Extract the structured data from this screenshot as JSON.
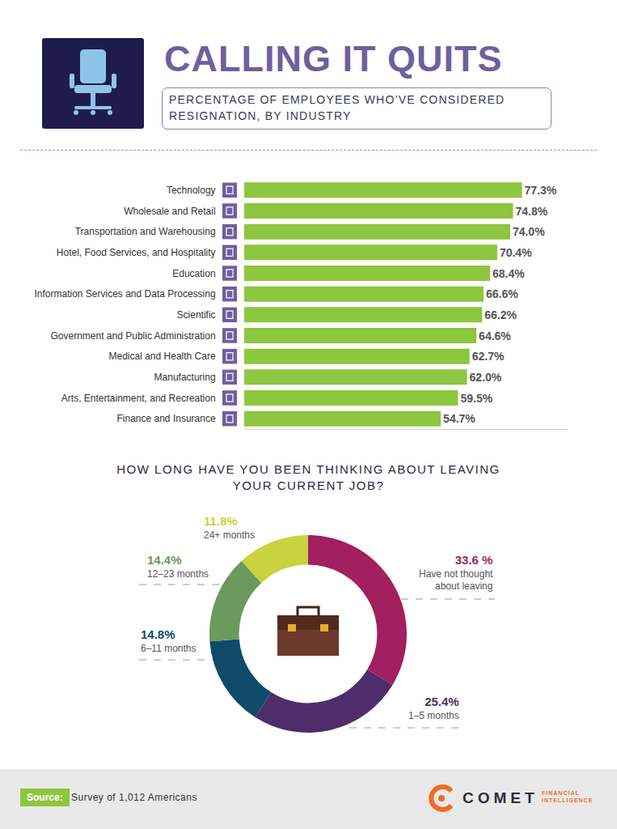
{
  "chart_data": [
    {
      "type": "bar",
      "title": "CALLING IT QUITS",
      "subtitle": "PERCENTAGE OF EMPLOYEES WHO’VE CONSIDERED RESIGNATION, BY INDUSTRY",
      "orientation": "horizontal",
      "categories": [
        "Technology",
        "Wholesale and Retail",
        "Transportation and Warehousing",
        "Hotel, Food Services, and Hospitality",
        "Education",
        "Information Services and Data Processing",
        "Scientific",
        "Government and Public Administration",
        "Medical and Health Care",
        "Manufacturing",
        "Arts, Entertainment, and Recreation",
        "Finance and Insurance"
      ],
      "values": [
        77.3,
        74.8,
        74.0,
        70.4,
        68.4,
        66.6,
        66.2,
        64.6,
        62.7,
        62.0,
        59.5,
        54.7
      ],
      "value_labels": [
        "77.3%",
        "74.8%",
        "74.0%",
        "70.4%",
        "68.4%",
        "66.6%",
        "66.2%",
        "64.6%",
        "62.7%",
        "62.0%",
        "59.5%",
        "54.7%"
      ],
      "color": "#8dc63f",
      "xlim": [
        0,
        90
      ],
      "grid": false,
      "tick_labels": "y",
      "data_labels": true
    },
    {
      "type": "pie",
      "title": "HOW LONG HAVE YOU BEEN THINKING ABOUT LEAVING YOUR CURRENT JOB?",
      "categories": [
        "Have not thought about leaving",
        "1–5 months",
        "6–11 months",
        "12–23 months",
        "24+ months"
      ],
      "values": [
        33.6,
        25.4,
        14.8,
        14.4,
        11.8
      ],
      "value_labels": [
        "33.6 %",
        "25.4%",
        "14.8%",
        "14.4%",
        "11.8%"
      ],
      "colors": [
        "#a21f60",
        "#4e2d6a",
        "#0f4a69",
        "#6b9a5c",
        "#c9d340"
      ],
      "data_labels": true
    }
  ],
  "footer": {
    "source_label": "Source:",
    "source": "Survey of 1,012 Americans",
    "logo": {
      "name": "COMET",
      "tagline": [
        "FINANCIAL",
        "INTELLIGENCE"
      ]
    }
  }
}
